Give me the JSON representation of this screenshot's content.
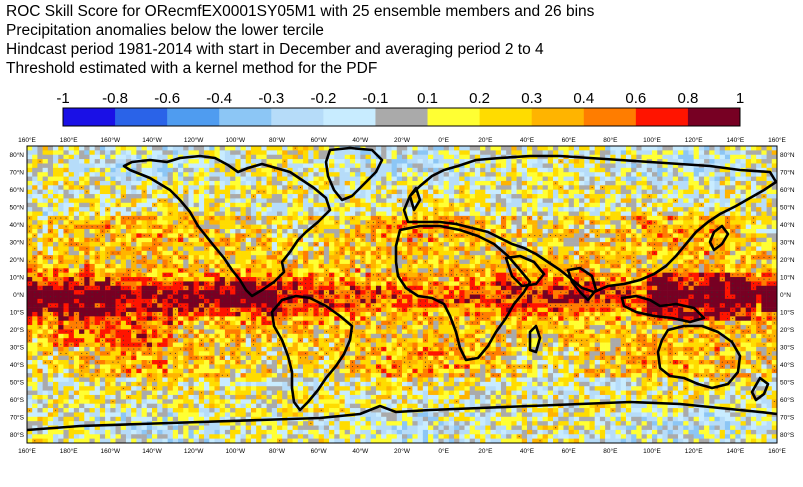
{
  "title_lines": [
    "ROC Skill Score for ORecmfEX0001SY05M1 with 25 ensemble members and 26 bins",
    "Precipitation anomalies below the lower tercile",
    "Hindcast period 1981-2014 with start in December and averaging period  2 to  4",
    "Threshold estimated with a kernel method for the PDF"
  ],
  "colorbar": {
    "labels": [
      "-1",
      "-0.8",
      "-0.6",
      "-0.4",
      "-0.3",
      "-0.2",
      "-0.1",
      "0.1",
      "0.2",
      "0.3",
      "0.4",
      "0.6",
      "0.8",
      "1"
    ],
    "colors": [
      "#1a10e6",
      "#2a63e8",
      "#4f9cf0",
      "#8cc6f5",
      "#b6dcf9",
      "#c8ecff",
      "#aaaaaa",
      "#ffff33",
      "#ffdc00",
      "#ffb400",
      "#ff7d00",
      "#ff1400",
      "#770023"
    ]
  },
  "map": {
    "lon_labels": [
      "160°E",
      "180°E",
      "160°W",
      "140°W",
      "120°W",
      "100°W",
      "80°W",
      "60°W",
      "40°W",
      "20°W",
      "0°E",
      "20°E",
      "40°E",
      "60°E",
      "80°E",
      "100°E",
      "120°E",
      "140°E",
      "160°E"
    ],
    "lat_labels": [
      "80°N",
      "70°N",
      "60°N",
      "50°N",
      "40°N",
      "30°N",
      "20°N",
      "10°N",
      "0°N",
      "10°S",
      "20°S",
      "30°S",
      "40°S",
      "50°S",
      "60°S",
      "70°S",
      "80°S"
    ],
    "lon_range": [
      160,
      520
    ],
    "lat_range": [
      -85,
      85
    ],
    "cell_size_degrees": 2.5
  }
}
